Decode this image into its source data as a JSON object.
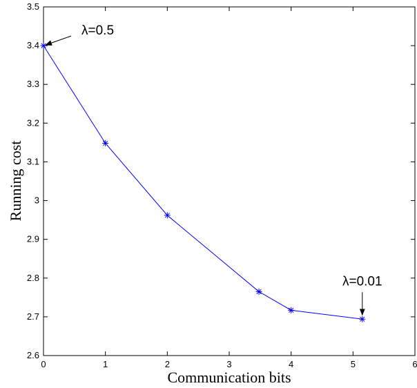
{
  "chart_data": {
    "type": "line",
    "xlabel": "Communication bits",
    "ylabel": "Running cost",
    "xlim": [
      0,
      6
    ],
    "ylim": [
      2.6,
      3.5
    ],
    "xticks": [
      "0",
      "1",
      "2",
      "3",
      "4",
      "5",
      "6"
    ],
    "yticks": [
      "2.6",
      "2.7",
      "2.8",
      "2.9",
      "3",
      "3.1",
      "3.2",
      "3.3",
      "3.4",
      "3.5"
    ],
    "grid": false,
    "series": [
      {
        "color": "#0000ff",
        "marker": "asterisk",
        "x": [
          0,
          1,
          2,
          3.48,
          4,
          5.15
        ],
        "y": [
          3.4,
          3.148,
          2.962,
          2.765,
          2.717,
          2.694
        ]
      }
    ],
    "annotations": [
      {
        "text": "λ=0.5",
        "x": 0,
        "y": 3.4
      },
      {
        "text": "λ=0.01",
        "x": 5.15,
        "y": 2.694
      }
    ]
  }
}
